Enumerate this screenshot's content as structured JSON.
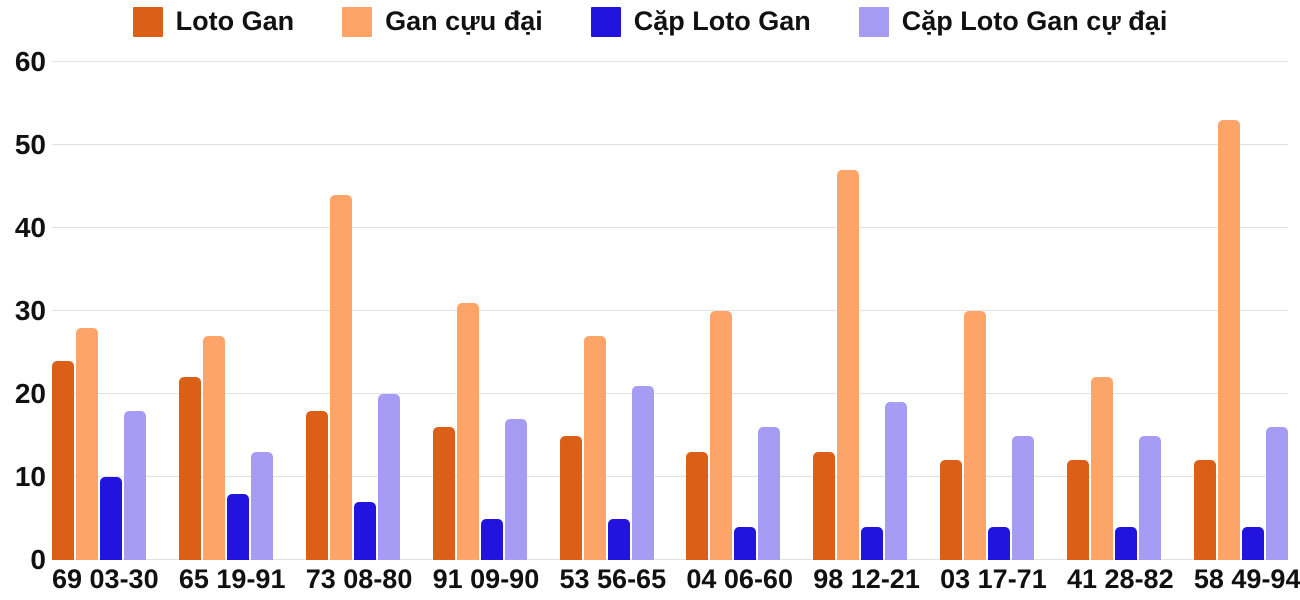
{
  "chart_data": {
    "type": "bar",
    "categories": [
      "69 03-30",
      "65 19-91",
      "73 08-80",
      "91 09-90",
      "53 56-65",
      "04 06-60",
      "98 12-21",
      "03 17-71",
      "41 28-82",
      "58 49-94"
    ],
    "series": [
      {
        "name": "Loto Gan",
        "color": "#db5f17",
        "values": [
          24,
          22,
          18,
          16,
          15,
          13,
          13,
          12,
          12,
          12
        ]
      },
      {
        "name": "Gan cựu đại",
        "color": "#fda468",
        "values": [
          28,
          27,
          44,
          31,
          27,
          30,
          47,
          30,
          22,
          53
        ]
      },
      {
        "name": "Cặp Loto Gan",
        "color": "#2213df",
        "values": [
          10,
          8,
          7,
          5,
          5,
          4,
          4,
          4,
          4,
          4
        ]
      },
      {
        "name": "Cặp Loto Gan cự đại",
        "color": "#a69cf4",
        "values": [
          18,
          13,
          20,
          17,
          21,
          16,
          19,
          15,
          15,
          16
        ]
      }
    ],
    "ylim": [
      0,
      60
    ],
    "yticks": [
      0,
      10,
      20,
      30,
      40,
      50,
      60
    ],
    "grid": true,
    "legend_position": "top",
    "background_color": "#ffffff",
    "gridline_color": "#e2e2e2",
    "text_color": "#111111"
  }
}
